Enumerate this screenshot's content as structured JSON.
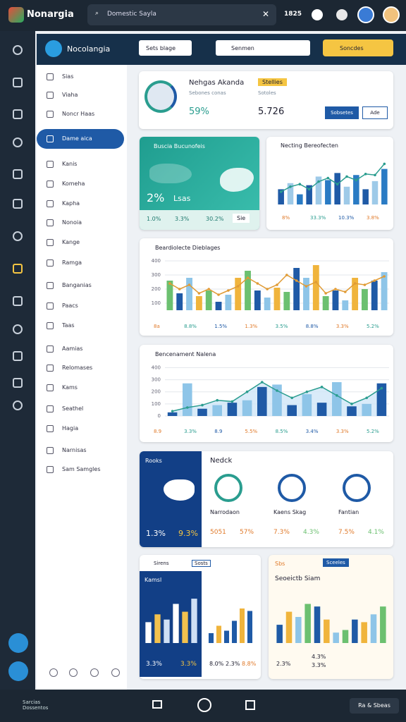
{
  "top_bar": {
    "app_name": "Nonargia",
    "search": "Domestic Sayla",
    "count": "1825"
  },
  "header": {
    "title": "Nocolangia",
    "select": "Sets blage",
    "search": "Senmen",
    "button": "Soncdes"
  },
  "sidebar": {
    "items": [
      "Sias",
      "Viaha",
      "Noncr Haas",
      "Dame aica",
      "Kanis",
      "Komeha",
      "Kapha",
      "Nonoia",
      "Kange",
      "Ramga",
      "Banganias",
      "Paacs",
      "Taas",
      "Aamias",
      "Relomases",
      "Kams",
      "Seathel",
      "Hagia",
      "Narnisas",
      "Sam Samgles"
    ],
    "active": 3
  },
  "profile": {
    "name": "Nehgas Akanda",
    "badge": "Stellies",
    "role": "Sebones conas",
    "sub": "Sotoles",
    "value1": "59%",
    "value2": "5.726",
    "button1": "Sobsetes",
    "button2": "Ade"
  },
  "map_card": {
    "title": "Buscia Bucunofeis",
    "pct": "2%",
    "label": "Lsas",
    "stats": [
      "1.0%",
      "3.3%",
      "30.2%"
    ],
    "button": "Sie"
  },
  "small_chart": {
    "title": "Necting Bereofecten",
    "stats": [
      "8%",
      "33.3%",
      "10.3%",
      "3.8%"
    ]
  },
  "wide_chart": {
    "title": "Beardiolecte Dieblages",
    "stats": [
      "8a",
      "8.8%",
      "1.5%",
      "1.3%",
      "3.5%",
      "8.8%",
      "3.3%",
      "5.2%"
    ]
  },
  "area_chart": {
    "title": "Bencenament Nalena",
    "stats": [
      "8.9",
      "3.3%",
      "8.9",
      "5.5%",
      "8.5%",
      "3.4%",
      "3.3%",
      "5.2%"
    ]
  },
  "stats_card": {
    "panel_title": "Rooks",
    "panel_values": [
      "1.3%",
      "9.3%"
    ],
    "title": "Nedck",
    "items": [
      {
        "name": "Narrodaon",
        "value": "5051",
        "pct": "57%"
      },
      {
        "name": "Kaens Skag",
        "value": "7.3%",
        "pct": "4.3%"
      },
      {
        "name": "Fantian",
        "value": "7.5%",
        "pct": "4.1%"
      }
    ]
  },
  "card_left": {
    "title": "Sirens",
    "tag": "Sosts",
    "panel": "Kamsl",
    "values": [
      "3.3%",
      "3.3%",
      "8.0%",
      "2.3%",
      "8.8%"
    ]
  },
  "card_right": {
    "tag_a": "Sbs",
    "tag_b": "Sceeles",
    "title": "Seoeictb Siam",
    "values": [
      "2.3%",
      "4.3%",
      "3.3%"
    ]
  },
  "bottom_bar": {
    "left": "Sarcias Dossentos",
    "right": "Ra & Sbeas"
  },
  "charts": [
    {
      "type": "bar",
      "ylim": [
        0,
        100
      ],
      "colors": [
        "#1f5aa6",
        "#9ecae8",
        "#2a7bc4"
      ],
      "bars": [
        30,
        42,
        20,
        38,
        55,
        48,
        62,
        35,
        58,
        30,
        46,
        70
      ],
      "line": [
        25,
        35,
        40,
        30,
        45,
        52,
        40,
        55,
        48,
        60,
        58,
        80
      ],
      "line_color": "#2a9d8f"
    },
    {
      "type": "bar",
      "ylim": [
        50,
        420
      ],
      "yticks": [
        100,
        200,
        300,
        400
      ],
      "grid": true,
      "colors": [
        "#6cc070",
        "#1f5aa6",
        "#8ec5e8",
        "#f0b43c"
      ],
      "bars": [
        260,
        170,
        280,
        150,
        190,
        110,
        160,
        280,
        330,
        190,
        140,
        210,
        180,
        350,
        280,
        370,
        150,
        190,
        120,
        280,
        200,
        260,
        320
      ],
      "line": [
        240,
        200,
        230,
        170,
        200,
        160,
        190,
        220,
        280,
        240,
        200,
        230,
        300,
        260,
        220,
        250,
        170,
        200,
        180,
        240,
        230,
        260,
        290
      ],
      "line_color": "#e09b35"
    },
    {
      "type": "bar",
      "ylim": [
        0,
        420
      ],
      "yticks": [
        0,
        100,
        200,
        300,
        400
      ],
      "grid": true,
      "area": true,
      "colors": [
        "#1f5aa6",
        "#8ec5e8"
      ],
      "bars": [
        30,
        270,
        60,
        90,
        110,
        130,
        240,
        260,
        90,
        180,
        110,
        280,
        80,
        100,
        270
      ],
      "line": [
        40,
        70,
        90,
        130,
        120,
        200,
        280,
        210,
        150,
        200,
        240,
        170,
        100,
        150,
        230
      ],
      "line_color": "#2a9d8f"
    },
    {
      "type": "bar",
      "ylim": [
        0,
        100
      ],
      "colors": [
        "#ffffff",
        "#f2c14e",
        "#cfe0f5"
      ],
      "bars": [
        40,
        55,
        45,
        75,
        60,
        85
      ]
    },
    {
      "type": "bar",
      "ylim": [
        0,
        100
      ],
      "colors": [
        "#1f5aa6",
        "#f0b43c",
        "#1f5aa6"
      ],
      "bars": [
        20,
        35,
        25,
        45,
        70,
        65
      ]
    },
    {
      "type": "bar",
      "ylim": [
        0,
        100
      ],
      "colors": [
        "#1f5aa6",
        "#f0b43c",
        "#8ec5e8",
        "#6cc070"
      ],
      "bars": [
        35,
        60,
        50,
        75,
        70,
        45,
        20,
        25,
        45,
        40,
        55,
        70
      ]
    }
  ]
}
